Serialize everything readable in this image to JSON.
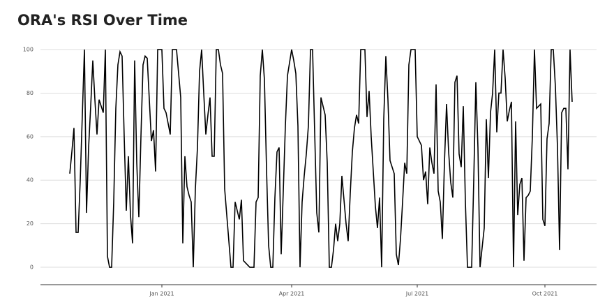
{
  "chart_data": {
    "type": "line",
    "title": "ORA's RSI Over Time",
    "categories": [
      null,
      null,
      null,
      null,
      null,
      null,
      null,
      null,
      null,
      null,
      null,
      null,
      null,
      null,
      null,
      null,
      null,
      null,
      null,
      null,
      null,
      null,
      null,
      null,
      null,
      null,
      null,
      null,
      null,
      null,
      null,
      null,
      null,
      null,
      null,
      null,
      null,
      null,
      null,
      null,
      null,
      null,
      null,
      null,
      "Jan 2021",
      null,
      null,
      null,
      null,
      null,
      null,
      null,
      null,
      null,
      null,
      null,
      null,
      null,
      null,
      null,
      null,
      null,
      null,
      null,
      null,
      null,
      null,
      null,
      null,
      null,
      null,
      null,
      null,
      null,
      null,
      null,
      null,
      null,
      null,
      null,
      null,
      null,
      null,
      null,
      null,
      null,
      null,
      null,
      null,
      null,
      null,
      null,
      null,
      null,
      null,
      null,
      null,
      null,
      null,
      null,
      null,
      null,
      null,
      null,
      null,
      null,
      "Apr 2021",
      null,
      null,
      null,
      null,
      null,
      null,
      null,
      null,
      null,
      null,
      null,
      null,
      null,
      null,
      null,
      null,
      null,
      null,
      null,
      null,
      null,
      null,
      null,
      null,
      null,
      null,
      null,
      null,
      null,
      null,
      null,
      null,
      null,
      null,
      null,
      null,
      null,
      null,
      null,
      null,
      null,
      null,
      null,
      null,
      null,
      null,
      null,
      null,
      null,
      null,
      null,
      null,
      null,
      null,
      null,
      null,
      null,
      null,
      null,
      "Jul 2021",
      null,
      null,
      null,
      null,
      null,
      null,
      null,
      null,
      null,
      null,
      null,
      null,
      null,
      null,
      null,
      null,
      null,
      null,
      null,
      null,
      null,
      null,
      null,
      null,
      null,
      null,
      null,
      null,
      null,
      null,
      null,
      null,
      null,
      null,
      null,
      null,
      null,
      null,
      null,
      null,
      null,
      null,
      null,
      null,
      null,
      null,
      null,
      null,
      null,
      null,
      null,
      null,
      null,
      null,
      null,
      null,
      null,
      null,
      null,
      null,
      "Oct 2021",
      null,
      null,
      null,
      null,
      null,
      null,
      null,
      null,
      null,
      null,
      null,
      null,
      null
    ],
    "values": [
      43,
      53,
      64,
      16,
      16,
      40,
      70,
      100,
      25,
      55,
      74,
      95,
      77,
      61,
      77,
      74,
      71,
      100,
      5,
      0,
      0,
      30,
      73,
      93,
      99,
      97,
      60,
      26,
      51,
      24,
      11,
      95,
      48,
      23,
      60,
      93,
      97,
      96,
      77,
      58,
      63,
      44,
      100,
      100,
      100,
      73,
      71,
      66,
      61,
      100,
      100,
      100,
      89,
      78,
      11,
      51,
      37,
      33,
      30,
      0,
      36,
      55,
      90,
      100,
      80,
      61,
      70,
      78,
      51,
      51,
      100,
      100,
      93,
      89,
      36,
      24,
      12,
      0,
      0,
      30,
      26,
      22,
      31,
      3,
      2,
      1,
      0,
      0,
      0,
      30,
      32,
      88,
      100,
      86,
      45,
      10,
      0,
      0,
      32,
      53,
      55,
      6,
      35,
      65,
      88,
      94,
      100,
      95,
      89,
      65,
      0,
      30,
      42,
      52,
      65,
      100,
      100,
      62,
      25,
      16,
      78,
      74,
      70,
      48,
      0,
      0,
      8,
      20,
      12,
      20,
      42,
      31,
      20,
      12,
      34,
      53,
      64,
      70,
      66,
      100,
      100,
      100,
      69,
      81,
      60,
      44,
      28,
      18,
      32,
      0,
      68,
      97,
      77,
      49,
      46,
      43,
      6,
      1,
      13,
      30,
      48,
      43,
      93,
      100,
      100,
      100,
      60,
      58,
      56,
      40,
      44,
      29,
      55,
      48,
      43,
      84,
      35,
      30,
      13,
      48,
      75,
      53,
      39,
      32,
      85,
      88,
      52,
      46,
      74,
      30,
      0,
      0,
      0,
      40,
      85,
      55,
      0,
      9,
      18,
      68,
      41,
      71,
      80,
      100,
      62,
      80,
      80,
      100,
      87,
      67,
      72,
      76,
      0,
      67,
      24,
      38,
      41,
      3,
      32,
      33,
      35,
      60,
      100,
      73,
      74,
      75,
      22,
      19,
      59,
      66,
      100,
      100,
      83,
      55,
      8,
      71,
      73,
      73,
      45,
      100,
      76
    ],
    "color": "#000000",
    "ylim": [
      -8,
      102
    ],
    "yticks": [
      0,
      20,
      40,
      60,
      80,
      100
    ],
    "grid": true
  }
}
